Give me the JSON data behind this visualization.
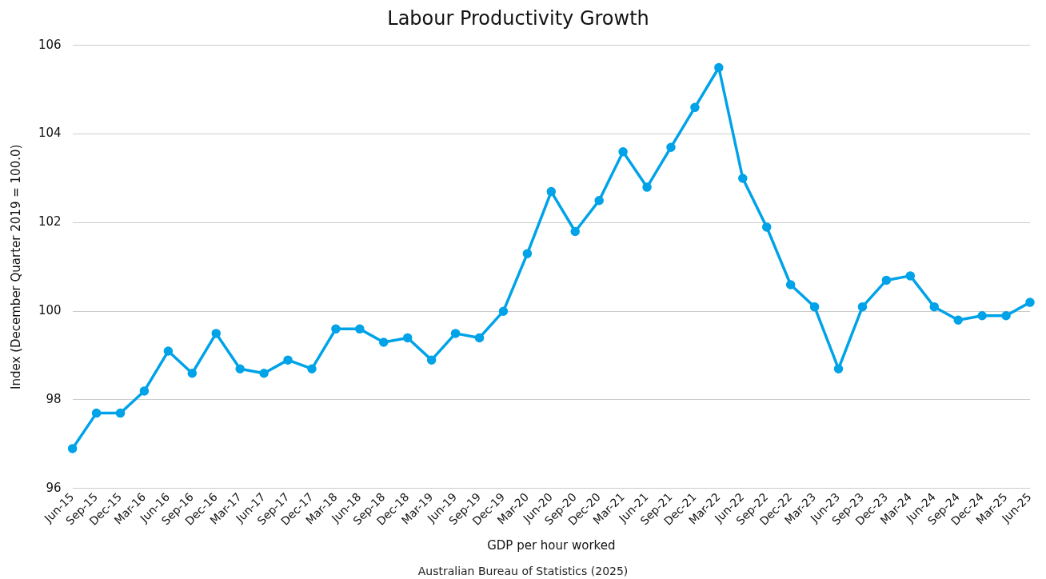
{
  "chart_data": {
    "type": "line",
    "title": "Labour Productivity Growth",
    "xlabel": "GDP per hour worked",
    "ylabel": "Index (December Quarter 2019 = 100.0)",
    "annotations": [
      "Australian Bureau of Statistics (2025)"
    ],
    "categories": [
      "Jun-15",
      "Sep-15",
      "Dec-15",
      "Mar-16",
      "Jun-16",
      "Sep-16",
      "Dec-16",
      "Mar-17",
      "Jun-17",
      "Sep-17",
      "Dec-17",
      "Mar-18",
      "Jun-18",
      "Sep-18",
      "Dec-18",
      "Mar-19",
      "Jun-19",
      "Sep-19",
      "Dec-19",
      "Mar-20",
      "Jun-20",
      "Sep-20",
      "Dec-20",
      "Mar-21",
      "Jun-21",
      "Sep-21",
      "Dec-21",
      "Mar-22",
      "Jun-22",
      "Sep-22",
      "Dec-22",
      "Mar-23",
      "Jun-23",
      "Sep-23",
      "Dec-23",
      "Mar-24",
      "Jun-24",
      "Sep-24",
      "Dec-24",
      "Mar-25",
      "Jun-25"
    ],
    "series": [
      {
        "color": "#00a3e8",
        "values": [
          96.9,
          97.7,
          97.7,
          98.2,
          99.1,
          98.6,
          99.5,
          98.7,
          98.6,
          98.9,
          98.7,
          99.6,
          99.6,
          99.3,
          99.4,
          98.9,
          99.5,
          99.4,
          100.0,
          101.3,
          102.7,
          101.8,
          102.5,
          103.6,
          102.8,
          103.7,
          104.6,
          105.5,
          103.0,
          101.9,
          100.6,
          100.1,
          98.7,
          100.1,
          100.7,
          100.8,
          100.1,
          99.8,
          99.9,
          99.9,
          100.2
        ]
      }
    ],
    "ylim": [
      96,
      106
    ],
    "yticks": [
      96,
      98,
      100,
      102,
      104,
      106
    ],
    "grid": "y",
    "marker": "circle",
    "line_style": "solid",
    "legend": false
  }
}
